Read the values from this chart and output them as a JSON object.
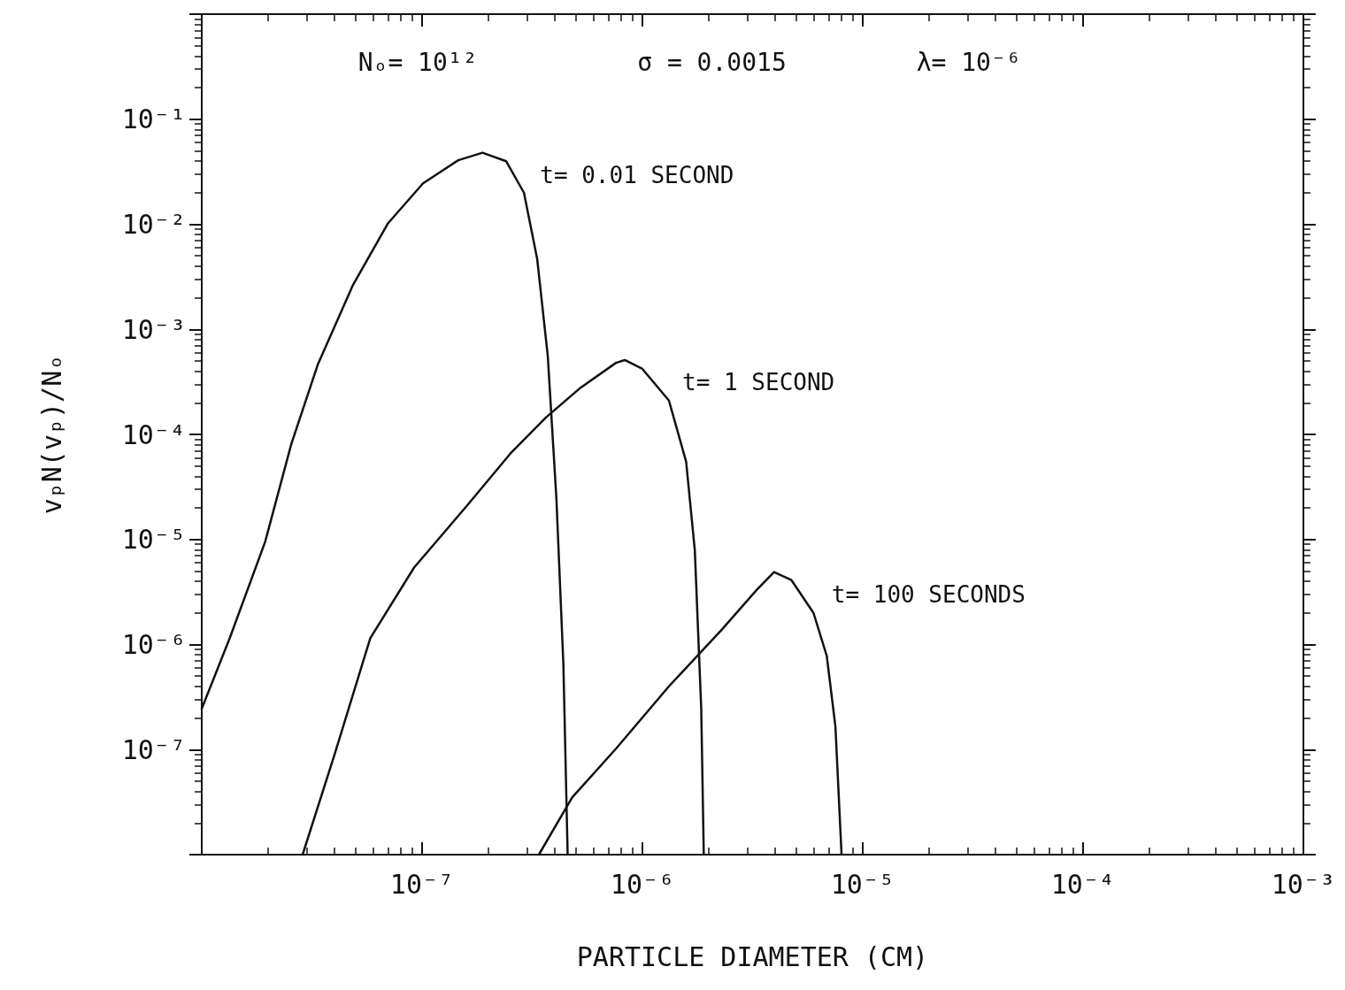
{
  "chart_data": {
    "type": "line",
    "xlabel": "PARTICLE DIAMETER (CM)",
    "ylabel": "vₚN(vₚ)/Nₒ",
    "annotations": [
      "Nₒ= 10¹²",
      "σ = 0.0015",
      "λ= 10⁻⁶"
    ],
    "log": "xy",
    "grid": false,
    "legend": false,
    "line_style": "solid",
    "xlim": [
      1e-08,
      0.001
    ],
    "xticks": [
      {
        "value": 1e-08,
        "label": null
      },
      {
        "value": 1e-07,
        "label": "10⁻⁷"
      },
      {
        "value": 1e-06,
        "label": "10⁻⁶"
      },
      {
        "value": 1e-05,
        "label": "10⁻⁵"
      },
      {
        "value": 0.0001,
        "label": "10⁻⁴"
      },
      {
        "value": 0.001,
        "label": "10⁻³"
      }
    ],
    "ylim": [
      1e-08,
      1
    ],
    "yticks": [
      {
        "value": 1e-08,
        "label": null
      },
      {
        "value": 1e-07,
        "label": "10⁻⁷"
      },
      {
        "value": 1e-06,
        "label": "10⁻⁶"
      },
      {
        "value": 1e-05,
        "label": "10⁻⁵"
      },
      {
        "value": 0.0001,
        "label": "10⁻⁴"
      },
      {
        "value": 0.001,
        "label": "10⁻³"
      },
      {
        "value": 0.01,
        "label": "10⁻²"
      },
      {
        "value": 0.1,
        "label": "10⁻¹"
      },
      {
        "value": 1,
        "label": null
      }
    ],
    "series": [
      {
        "name": "t= 0.01 SECOND",
        "color": "#111111",
        "x": [
          1e-08,
          1.34e-08,
          1.94e-08,
          2.55e-08,
          3.36e-08,
          4.84e-08,
          7e-08,
          1.01e-07,
          1.46e-07,
          1.88e-07,
          2.41e-07,
          2.9e-07,
          3.33e-07,
          3.72e-07,
          4.07e-07,
          4.38e-07,
          4.58e-07
        ],
        "values": [
          2.45e-07,
          1.15e-06,
          9.5e-06,
          8.1e-05,
          0.00046,
          0.0026,
          0.0102,
          0.0245,
          0.0407,
          0.048,
          0.0398,
          0.02,
          0.0047,
          0.00056,
          2.5e-05,
          6.5e-07,
          1e-08
        ]
      },
      {
        "name": "t= 1 SECOND",
        "color": "#111111",
        "x": [
          2.87e-08,
          4.03e-08,
          5.82e-08,
          9.2e-08,
          1.6e-07,
          2.52e-07,
          3.65e-07,
          5.26e-07,
          7.59e-07,
          8.32e-07,
          1e-06,
          1.32e-06,
          1.58e-06,
          1.73e-06,
          1.85e-06,
          1.9e-06
        ],
        "values": [
          1e-08,
          9.3e-08,
          1.15e-06,
          5.4e-06,
          2.1e-05,
          6.6e-05,
          0.000145,
          0.00028,
          0.00048,
          0.00051,
          0.00042,
          0.00021,
          5.5e-05,
          7.9e-06,
          2.45e-07,
          1e-08
        ]
      },
      {
        "name": "t= 100 SECONDS",
        "color": "#111111",
        "x": [
          3.39e-07,
          4.8e-07,
          7.59e-07,
          1.32e-06,
          2.29e-06,
          3.3e-06,
          3.96e-06,
          4.75e-06,
          5.98e-06,
          6.87e-06,
          7.52e-06,
          8.02e-06
        ],
        "values": [
          1e-08,
          3.5e-08,
          1.02e-07,
          4e-07,
          1.38e-06,
          3.3e-06,
          4.9e-06,
          4.1e-06,
          2e-06,
          7.8e-07,
          1.66e-07,
          1e-08
        ]
      }
    ]
  }
}
